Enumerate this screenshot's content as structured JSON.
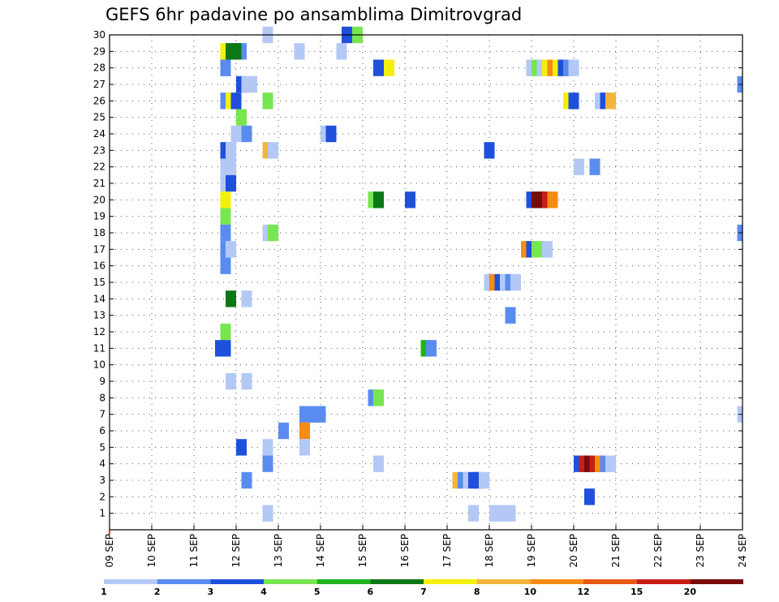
{
  "chart_data": {
    "type": "heatmap",
    "title": "GEFS 6hr padavine po ansamblima Dimitrovgrad",
    "xlabel": "",
    "ylabel": "",
    "x_tick_labels": [
      "09 SEP",
      "10 SEP",
      "11 SEP",
      "12 SEP",
      "13 SEP",
      "14 SEP",
      "15 SEP",
      "16 SEP",
      "17 SEP",
      "18 SEP",
      "19 SEP",
      "20 SEP",
      "21 SEP",
      "22 SEP",
      "23 SEP",
      "24 SEP"
    ],
    "x_range_days": [
      0,
      15
    ],
    "step_hours": 6,
    "y_tick_labels": [
      "1",
      "2",
      "3",
      "4",
      "5",
      "6",
      "7",
      "8",
      "9",
      "10",
      "11",
      "12",
      "13",
      "14",
      "15",
      "16",
      "17",
      "18",
      "19",
      "20",
      "21",
      "22",
      "23",
      "24",
      "25",
      "26",
      "27",
      "28",
      "29",
      "30"
    ],
    "y_range": [
      0,
      30
    ],
    "grid": true,
    "colorbar": {
      "labels": [
        "1",
        "2",
        "3",
        "4",
        "5",
        "6",
        "7",
        "8",
        "10",
        "12",
        "15",
        "20"
      ],
      "colors": [
        "#b4c8f5",
        "#5a8cf0",
        "#1e50dc",
        "#78e650",
        "#1eb41e",
        "#0a7814",
        "#f5f00a",
        "#f5b43c",
        "#f58c14",
        "#e65a14",
        "#c81e14",
        "#780a0a"
      ]
    },
    "cells": [
      {
        "m": 30,
        "x": [
          14.5,
          22,
          23
        ]
      },
      {
        "m": 29,
        "x": [
          10.5,
          11,
          11.5,
          12,
          17.5,
          21.5,
          11.5
        ]
      },
      {
        "m": 28,
        "x": [
          10.5,
          10.5,
          25,
          26,
          39.5,
          40,
          40.5,
          41,
          41.5,
          42,
          42.5,
          43,
          43.5
        ]
      },
      {
        "m": 27,
        "x": [
          12,
          12.5,
          13,
          59.5
        ]
      },
      {
        "m": 26,
        "x": [
          10.5,
          11,
          11.5,
          14.5,
          43,
          43.5,
          46,
          46.5,
          47
        ]
      },
      {
        "m": 25,
        "x": [
          12
        ]
      },
      {
        "m": 24,
        "x": [
          11.5,
          12.5,
          20,
          20.5
        ]
      },
      {
        "m": 23,
        "x": [
          10.5,
          11,
          14.5,
          15,
          35.5
        ]
      },
      {
        "m": 22,
        "x": [
          10.5,
          11,
          44,
          45.5
        ]
      },
      {
        "m": 21,
        "x": [
          10.5,
          11
        ]
      },
      {
        "m": 20,
        "x": [
          10.5,
          24.5,
          25,
          28,
          39.5,
          40,
          40.5,
          41,
          41.5
        ]
      },
      {
        "m": 19,
        "x": [
          10.5
        ]
      },
      {
        "m": 18,
        "x": [
          10.5,
          14.5,
          15,
          59.5
        ]
      },
      {
        "m": 17,
        "x": [
          10.5,
          11,
          39,
          39.5,
          40,
          40.5,
          41
        ]
      },
      {
        "m": 16,
        "x": [
          10.5
        ]
      },
      {
        "m": 15,
        "x": [
          35.5,
          36,
          36.5,
          37,
          37.5,
          38
        ]
      },
      {
        "m": 14,
        "x": [
          11,
          12.5
        ]
      },
      {
        "m": 13,
        "x": [
          37.5
        ]
      },
      {
        "m": 12,
        "x": [
          10.5
        ]
      },
      {
        "m": 11,
        "x": [
          10,
          10.5,
          29.5,
          30
        ]
      },
      {
        "m": 9,
        "x": [
          11,
          12.5
        ]
      },
      {
        "m": 8,
        "x": [
          24.5,
          25
        ]
      },
      {
        "m": 7,
        "x": [
          18,
          18.5,
          19,
          19.5,
          59.5
        ]
      },
      {
        "m": 6,
        "x": [
          16,
          18
        ]
      },
      {
        "m": 5,
        "x": [
          12,
          14.5,
          18
        ]
      },
      {
        "m": 4,
        "x": [
          14.5,
          25,
          44,
          44.5,
          45,
          45.5,
          46,
          46.5,
          47
        ]
      },
      {
        "m": 3,
        "x": [
          12.5,
          32.5,
          33,
          33.5,
          34,
          34.5,
          35
        ]
      },
      {
        "m": 2,
        "x": [
          45
        ]
      },
      {
        "m": 1,
        "x": [
          14.5,
          34,
          36,
          37,
          37.5,
          36
        ]
      }
    ],
    "cell_values": [
      [
        1,
        3,
        4
      ],
      [
        7,
        6,
        2,
        2,
        1,
        1,
        6
      ],
      [
        2,
        2,
        3,
        7,
        1,
        4,
        1,
        7,
        10,
        7,
        3,
        2,
        1
      ],
      [
        3,
        1,
        1,
        2
      ],
      [
        2,
        7,
        3,
        4,
        7,
        3,
        1,
        3,
        8
      ],
      [
        4
      ],
      [
        1,
        2,
        1,
        3
      ],
      [
        3,
        1,
        8,
        1,
        3
      ],
      [
        1,
        1,
        1,
        2
      ],
      [
        1,
        3
      ],
      [
        7,
        4,
        6,
        3,
        3,
        20,
        20,
        15,
        10
      ],
      [
        4
      ],
      [
        2,
        1,
        4,
        2
      ],
      [
        2,
        1,
        10,
        3,
        4,
        4,
        1
      ],
      [
        2
      ],
      [
        1,
        10,
        3,
        1,
        2,
        1
      ],
      [
        6,
        1
      ],
      [
        2
      ],
      [
        4
      ],
      [
        3,
        3,
        5,
        2
      ],
      [
        1,
        1
      ],
      [
        2,
        4
      ],
      [
        2,
        2,
        2,
        2,
        1
      ],
      [
        2,
        10
      ],
      [
        3,
        1,
        1
      ],
      [
        2,
        1,
        3,
        15,
        20,
        15,
        10,
        2,
        1
      ],
      [
        2,
        8,
        2,
        1,
        3,
        3
      ],
      [
        3
      ],
      [
        1,
        1,
        1,
        1,
        1,
        1
      ]
    ]
  }
}
